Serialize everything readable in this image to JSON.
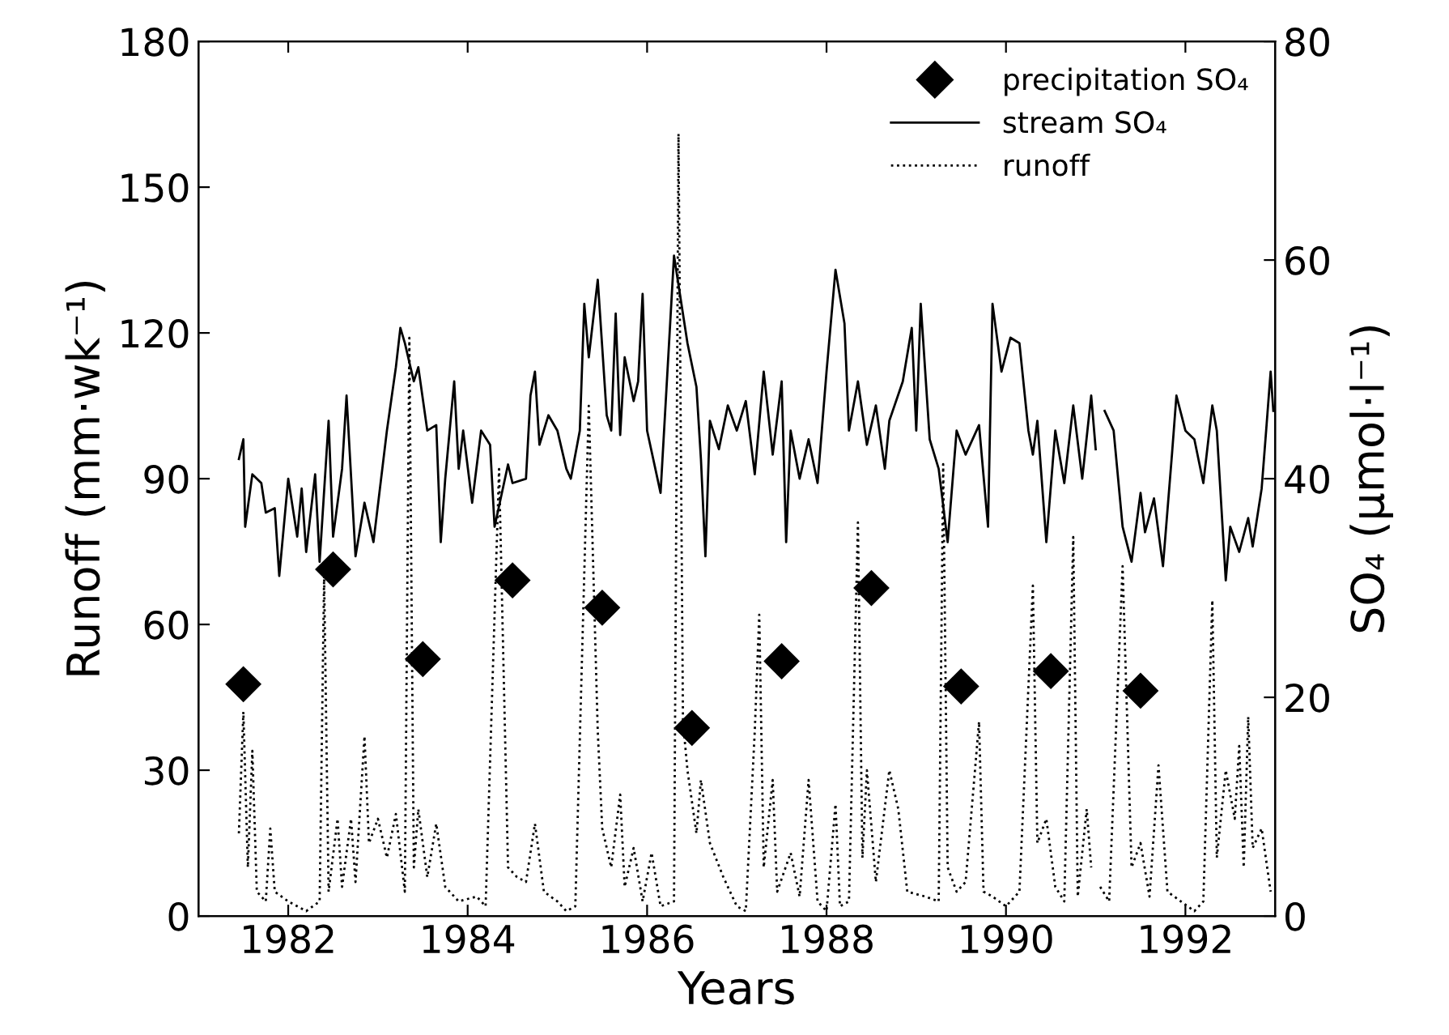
{
  "chart_data": {
    "type": "line",
    "xlabel": "Years",
    "ylabel": "Runoff (mm·wk⁻¹)",
    "y2label": "SO₄ (µmol·l⁻¹)",
    "xlim": [
      1981,
      1993
    ],
    "xticks": [
      1982,
      1984,
      1986,
      1988,
      1990,
      1992
    ],
    "ylim": [
      0,
      180
    ],
    "yticks": [
      0,
      30,
      60,
      90,
      120,
      150,
      180
    ],
    "y2lim": [
      0,
      80
    ],
    "y2ticks": [
      0,
      20,
      40,
      60,
      80
    ],
    "grid": false,
    "legend": "top right",
    "series": [
      {
        "name": "precipitation SO₄",
        "type": "scatter",
        "marker": "diamond",
        "axis": "y2",
        "color": "#000000",
        "x": [
          1981.5,
          1982.5,
          1983.5,
          1984.5,
          1985.5,
          1986.5,
          1987.5,
          1988.5,
          1989.5,
          1990.5,
          1991.5
        ],
        "values": [
          21.2,
          31.7,
          23.5,
          30.7,
          28.2,
          17.2,
          23.3,
          30.0,
          21.0,
          22.4,
          20.6
        ]
      },
      {
        "name": "stream SO₄",
        "type": "line",
        "line_style": "solid",
        "axis": "y2",
        "color": "#000000",
        "x": [
          1981.45,
          1981.5,
          1981.52,
          1981.6,
          1981.7,
          1981.75,
          1981.85,
          1981.9,
          1982.0,
          1982.1,
          1982.15,
          1982.2,
          1982.3,
          1982.35,
          1982.45,
          1982.5,
          1982.6,
          1982.65,
          1982.75,
          1982.85,
          1982.95,
          1983.1,
          1983.2,
          1983.25,
          1983.3,
          1983.4,
          1983.45,
          1983.55,
          1983.65,
          1983.7,
          1983.75,
          1983.85,
          1983.9,
          1983.95,
          1984.05,
          1984.15,
          1984.25,
          1984.3,
          1984.45,
          1984.5,
          1984.65,
          1984.7,
          1984.75,
          1984.8,
          1984.9,
          1985.0,
          1985.1,
          1985.15,
          1985.25,
          1985.3,
          1985.35,
          1985.45,
          1985.55,
          1985.6,
          1985.65,
          1985.7,
          1985.75,
          1985.85,
          1985.9,
          1985.95,
          1986.0,
          1986.15,
          1986.3,
          1986.45,
          1986.55,
          1986.6,
          1986.65,
          1986.7,
          1986.8,
          1986.9,
          1987.0,
          1987.1,
          1987.2,
          1987.3,
          1987.4,
          1987.5,
          1987.55,
          1987.6,
          1987.7,
          1987.8,
          1987.9,
          1988.0,
          1988.1,
          1988.2,
          1988.25,
          1988.35,
          1988.45,
          1988.55,
          1988.65,
          1988.7,
          1988.85,
          1988.95,
          1989.0,
          1989.05,
          1989.15,
          1989.25,
          1989.35,
          1989.45,
          1989.55,
          1989.7,
          1989.8,
          1989.85,
          1989.95,
          1990.05,
          1990.15,
          1990.25,
          1990.3,
          1990.35,
          1990.45,
          1990.55,
          1990.65,
          1990.75,
          1990.85,
          1990.95,
          1991.0,
          1991.05,
          1991.1,
          1991.2,
          1991.3,
          1991.4,
          1991.5,
          1991.55,
          1991.65,
          1991.75,
          1991.85,
          1991.9,
          1992.0,
          1992.1,
          1992.2,
          1992.3,
          1992.35,
          1992.45,
          1992.5,
          1992.6,
          1992.7,
          1992.75,
          1992.85,
          1992.9,
          1992.95,
          1992.98
        ],
        "values": [
          41.8,
          43.6,
          35.6,
          40.4,
          39.6,
          36.9,
          37.3,
          31.1,
          40.0,
          34.7,
          39.1,
          33.3,
          40.4,
          32.4,
          45.3,
          34.7,
          40.9,
          47.6,
          32.9,
          37.8,
          34.2,
          44.4,
          50.2,
          53.8,
          52.4,
          48.9,
          50.2,
          44.4,
          44.9,
          34.2,
          40.0,
          48.9,
          40.9,
          44.4,
          37.8,
          44.4,
          43.1,
          35.6,
          41.3,
          39.6,
          40.0,
          47.6,
          49.8,
          43.1,
          45.8,
          44.4,
          40.9,
          40.0,
          44.4,
          56.0,
          51.1,
          58.2,
          45.8,
          44.4,
          55.1,
          44.0,
          51.1,
          47.1,
          48.9,
          56.9,
          44.4,
          38.7,
          60.4,
          52.4,
          48.4,
          41.8,
          32.9,
          45.3,
          42.7,
          46.7,
          44.4,
          47.1,
          40.4,
          49.8,
          42.2,
          48.9,
          34.2,
          44.4,
          40.0,
          43.6,
          39.6,
          49.8,
          59.1,
          54.2,
          44.4,
          48.9,
          43.1,
          46.7,
          40.9,
          45.3,
          48.9,
          53.8,
          44.4,
          56.0,
          43.6,
          40.9,
          34.2,
          44.4,
          42.2,
          44.9,
          35.6,
          56.0,
          49.8,
          52.9,
          52.4,
          44.4,
          42.2,
          45.3,
          34.2,
          44.4,
          39.6,
          46.7,
          40.0,
          47.6,
          42.7,
          null,
          46.2,
          44.4,
          35.6,
          32.4,
          38.7,
          35.1,
          38.2,
          32.0,
          42.2,
          47.6,
          44.4,
          43.6,
          39.6,
          46.7,
          44.4,
          30.7,
          35.6,
          33.3,
          36.4,
          33.8,
          39.1,
          44.4,
          49.8,
          46.2
        ]
      },
      {
        "name": "runoff",
        "line_style": "dotted",
        "color": "#000000",
        "x": [
          1981.45,
          1981.5,
          1981.55,
          1981.6,
          1981.65,
          1981.75,
          1981.8,
          1981.85,
          1982.0,
          1982.2,
          1982.35,
          1982.4,
          1982.45,
          1982.55,
          1982.6,
          1982.7,
          1982.75,
          1982.85,
          1982.9,
          1983.0,
          1983.1,
          1983.2,
          1983.3,
          1983.35,
          1983.4,
          1983.45,
          1983.55,
          1983.65,
          1983.75,
          1983.9,
          1984.1,
          1984.2,
          1984.35,
          1984.45,
          1984.55,
          1984.65,
          1984.75,
          1984.85,
          1985.0,
          1985.1,
          1985.2,
          1985.35,
          1985.45,
          1985.5,
          1985.6,
          1985.7,
          1985.75,
          1985.85,
          1985.95,
          1986.05,
          1986.15,
          1986.3,
          1986.35,
          1986.4,
          1986.45,
          1986.55,
          1986.6,
          1986.7,
          1986.85,
          1987.0,
          1987.1,
          1987.2,
          1987.25,
          1987.3,
          1987.4,
          1987.45,
          1987.6,
          1987.7,
          1987.8,
          1987.9,
          1988.0,
          1988.1,
          1988.15,
          1988.25,
          1988.35,
          1988.4,
          1988.45,
          1988.55,
          1988.7,
          1988.8,
          1988.9,
          1989.1,
          1989.25,
          1989.3,
          1989.35,
          1989.45,
          1989.55,
          1989.7,
          1989.75,
          1989.85,
          1990.0,
          1990.15,
          1990.3,
          1990.35,
          1990.45,
          1990.55,
          1990.65,
          1990.75,
          1990.8,
          1990.9,
          1990.95,
          1991.0,
          1991.05,
          1991.15,
          1991.3,
          1991.4,
          1991.5,
          1991.6,
          1991.7,
          1991.8,
          1991.95,
          1992.1,
          1992.2,
          1992.3,
          1992.35,
          1992.45,
          1992.55,
          1992.6,
          1992.65,
          1992.7,
          1992.75,
          1992.85,
          1992.95
        ],
        "values": [
          17,
          42,
          10,
          34,
          5,
          3,
          18,
          5,
          3,
          1,
          3,
          70,
          5,
          20,
          6,
          20,
          7,
          37,
          15,
          20,
          12,
          21,
          5,
          119,
          10,
          22,
          8,
          19,
          6,
          3,
          4,
          2,
          92,
          10,
          8,
          7,
          19,
          5,
          3,
          1,
          2,
          105,
          38,
          18,
          10,
          25,
          6,
          14,
          3,
          13,
          2,
          3,
          161,
          40,
          30,
          17,
          28,
          15,
          8,
          2,
          1,
          38,
          62,
          10,
          28,
          5,
          13,
          4,
          28,
          3,
          1,
          23,
          2,
          3,
          81,
          12,
          30,
          7,
          30,
          22,
          5,
          4,
          3,
          93,
          10,
          5,
          7,
          40,
          5,
          4,
          2,
          5,
          68,
          15,
          20,
          6,
          3,
          78,
          4,
          22,
          10,
          null,
          6,
          3,
          72,
          10,
          15,
          4,
          31,
          5,
          3,
          1,
          3,
          65,
          12,
          30,
          20,
          35,
          10,
          41,
          14,
          18,
          5
        ]
      }
    ]
  }
}
